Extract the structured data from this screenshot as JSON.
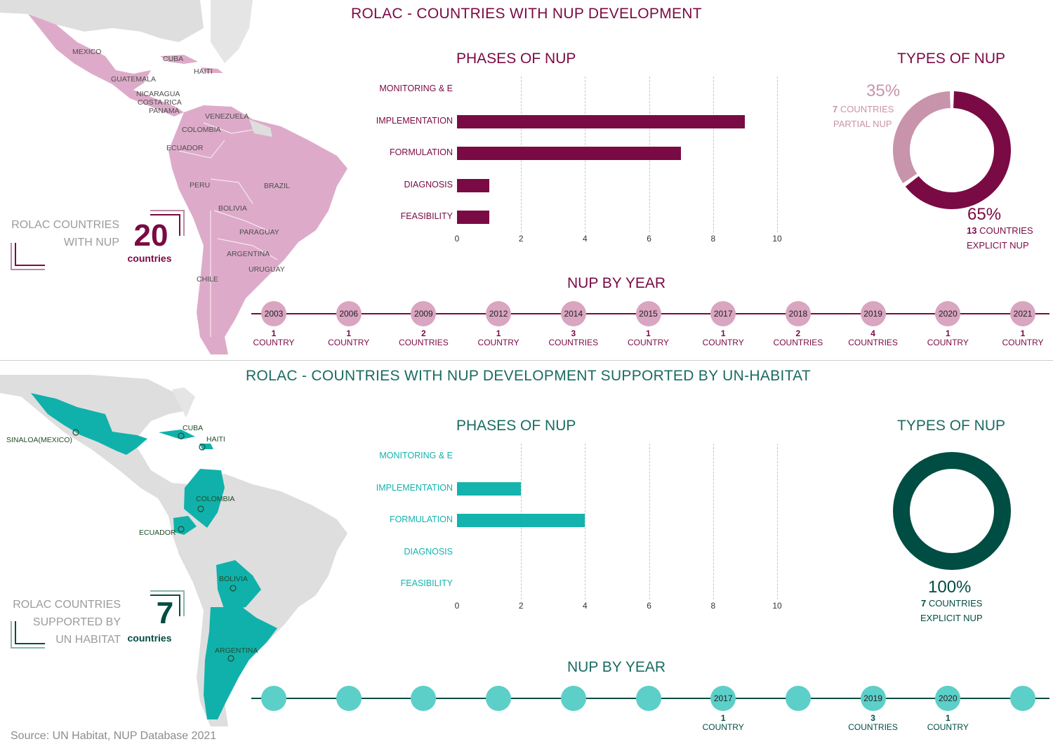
{
  "top": {
    "title": "ROLAC - COUNTRIES WITH NUP DEVELOPMENT",
    "count_label": [
      "ROLAC COUNTRIES",
      "WITH NUP"
    ],
    "count_value": "20",
    "count_unit": "countries",
    "map_labels": [
      "MEXICO",
      "CUBA",
      "HAITI",
      "GUATEMALA",
      "NICARAGUA",
      "COSTA RICA",
      "PANAMA",
      "VENEZUELA",
      "COLOMBIA",
      "ECUADOR",
      "PERU",
      "BRAZIL",
      "BOLIVIA",
      "PARAGUAY",
      "ARGENTINA",
      "URUGUAY",
      "CHILE"
    ],
    "phases_title": "PHASES OF NUP",
    "types_title": "TYPES OF NUP",
    "year_title": "NUP BY YEAR",
    "types": {
      "partial_pct": "35%",
      "partial_count": "7",
      "partial_count_unit": "COUNTRIES",
      "partial_label": "PARTIAL NUP",
      "explicit_pct": "65%",
      "explicit_count": "13",
      "explicit_count_unit": "COUNTRIES",
      "explicit_label": "EXPLICIT NUP"
    },
    "colors": {
      "accent": "#7a0a44",
      "map": "#ddabc9",
      "dot": "#d9a5c1",
      "partial": "#c894ab"
    }
  },
  "bottom": {
    "title": "ROLAC - COUNTRIES WITH NUP DEVELOPMENT SUPPORTED BY UN-HABITAT",
    "count_label": [
      "ROLAC COUNTRIES",
      "SUPPORTED BY",
      "UN HABITAT"
    ],
    "count_value": "7",
    "count_unit": "countries",
    "map_labels": [
      "SINALOA(MEXICO)",
      "CUBA",
      "HAITI",
      "COLOMBIA",
      "ECUADOR",
      "BOLIVIA",
      "ARGENTINA"
    ],
    "phases_title": "PHASES OF NUP",
    "types_title": "TYPES OF NUP",
    "year_title": "NUP BY YEAR",
    "types": {
      "explicit_pct": "100%",
      "explicit_count": "7",
      "explicit_count_unit": "COUNTRIES",
      "explicit_label": "EXPLICIT NUP"
    },
    "colors": {
      "accent": "#1a6b62",
      "dark": "#004d43",
      "bar": "#14b3ad",
      "map": "#10b1ab",
      "dot": "#5ccfc8"
    }
  },
  "source": "Source: UN Habitat, NUP Database 2021",
  "chart_data": [
    {
      "type": "bar",
      "orientation": "horizontal",
      "title": "PHASES OF NUP",
      "categories": [
        "MONITORING & E",
        "IMPLEMENTATION",
        "FORMULATION",
        "DIAGNOSIS",
        "FEASIBILITY"
      ],
      "values": [
        0,
        9,
        7,
        1,
        1
      ],
      "xlim": [
        0,
        10
      ],
      "xticks": [
        0,
        2,
        4,
        6,
        8,
        10
      ],
      "grid": true
    },
    {
      "type": "pie",
      "title": "TYPES OF NUP",
      "categories": [
        "PARTIAL NUP",
        "EXPLICIT NUP"
      ],
      "values": [
        35,
        65
      ],
      "counts": [
        7,
        13
      ]
    },
    {
      "type": "table",
      "title": "NUP BY YEAR",
      "years": [
        "2003",
        "2006",
        "2009",
        "2012",
        "2014",
        "2015",
        "2017",
        "2018",
        "2019",
        "2020",
        "2021"
      ],
      "counts": [
        "1",
        "1",
        "2",
        "1",
        "3",
        "1",
        "1",
        "2",
        "4",
        "1",
        "1"
      ],
      "units": [
        "COUNTRY",
        "COUNTRY",
        "COUNTRIES",
        "COUNTRY",
        "COUNTRIES",
        "COUNTRY",
        "COUNTRY",
        "COUNTRIES",
        "COUNTRIES",
        "COUNTRY",
        "COUNTRY"
      ]
    },
    {
      "type": "bar",
      "orientation": "horizontal",
      "title": "PHASES OF NUP",
      "categories": [
        "MONITORING & E",
        "IMPLEMENTATION",
        "FORMULATION",
        "DIAGNOSIS",
        "FEASIBILITY"
      ],
      "values": [
        0,
        2,
        4,
        0,
        0
      ],
      "xlim": [
        0,
        10
      ],
      "xticks": [
        0,
        2,
        4,
        6,
        8,
        10
      ],
      "grid": true
    },
    {
      "type": "pie",
      "title": "TYPES OF NUP",
      "categories": [
        "EXPLICIT NUP"
      ],
      "values": [
        100
      ],
      "counts": [
        7
      ]
    },
    {
      "type": "table",
      "title": "NUP BY YEAR",
      "years": [
        "",
        "",
        "",
        "",
        "",
        "",
        "2017",
        "",
        "2019",
        "2020",
        ""
      ],
      "counts": [
        "",
        "",
        "",
        "",
        "",
        "",
        "1",
        "",
        "3",
        "1",
        ""
      ],
      "units": [
        "",
        "",
        "",
        "",
        "",
        "",
        "COUNTRY",
        "",
        "COUNTRIES",
        "COUNTRY",
        ""
      ]
    }
  ]
}
